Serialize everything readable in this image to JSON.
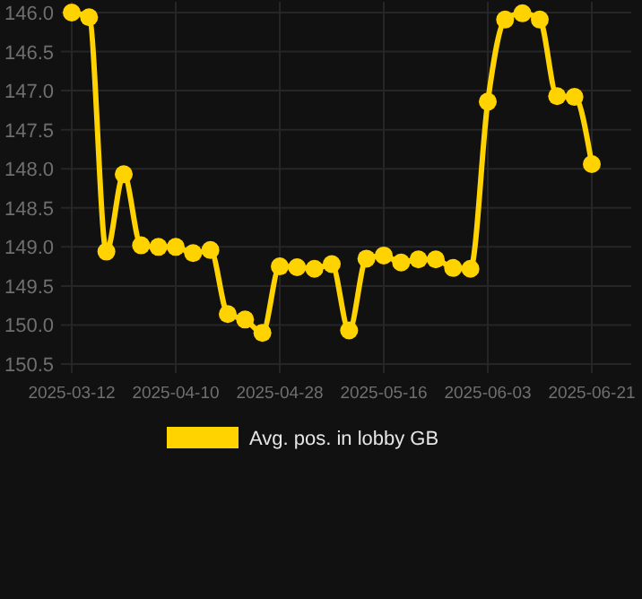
{
  "chart_data": {
    "type": "line",
    "categories": [
      "2025-03-12",
      null,
      null,
      null,
      null,
      null,
      "2025-04-10",
      null,
      null,
      null,
      null,
      null,
      "2025-04-28",
      null,
      null,
      null,
      null,
      null,
      "2025-05-16",
      null,
      null,
      null,
      null,
      null,
      "2025-06-03",
      null,
      null,
      null,
      null,
      null,
      "2025-06-21"
    ],
    "series": [
      {
        "name": "Avg. pos. in lobby GB",
        "color": "#ffd300",
        "values": [
          146.0,
          146.06,
          149.06,
          148.07,
          148.98,
          149.0,
          149.0,
          149.08,
          149.04,
          149.86,
          149.93,
          150.1,
          149.25,
          149.26,
          149.28,
          149.22,
          150.07,
          149.15,
          149.11,
          149.2,
          149.16,
          149.16,
          149.27,
          149.28,
          147.14,
          146.09,
          146.01,
          146.09,
          147.07,
          147.08,
          147.94
        ]
      }
    ],
    "ylim": [
      150.5,
      146.0
    ],
    "yticks": [
      {
        "value": 146,
        "label": "146.0"
      },
      146.5,
      {
        "value": 147,
        "label": "147.0"
      },
      147.5,
      {
        "value": 148,
        "label": "148.0"
      },
      148.5,
      {
        "value": 149,
        "label": "149.0"
      },
      149.5,
      {
        "value": 150,
        "label": "150.0"
      },
      150.5
    ],
    "grid": true,
    "legend": "bottom",
    "marker": "circle",
    "line_style": "solid"
  }
}
